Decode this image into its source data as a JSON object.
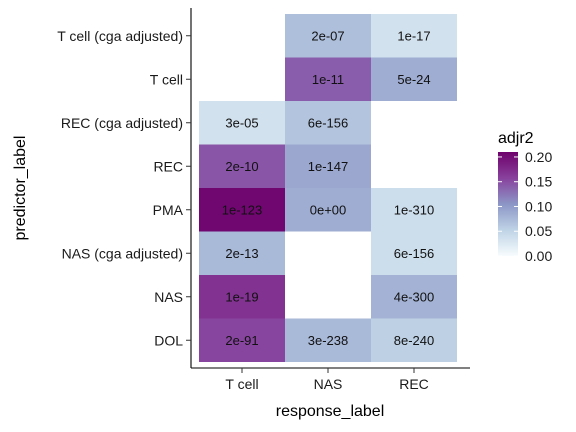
{
  "chart_data": {
    "type": "heatmap",
    "xlabel": "response_label",
    "ylabel": "predictor_label",
    "x_categories": [
      "T cell",
      "NAS",
      "REC"
    ],
    "y_categories": [
      "T cell (cga adjusted)",
      "T cell",
      "REC (cga adjusted)",
      "REC",
      "PMA",
      "NAS (cga adjusted)",
      "NAS",
      "DOL"
    ],
    "cells": [
      {
        "x": "NAS",
        "y": "T cell (cga adjusted)",
        "value": 0.07,
        "label": "2e-07"
      },
      {
        "x": "REC",
        "y": "T cell (cga adjusted)",
        "value": 0.035,
        "label": "1e-17"
      },
      {
        "x": "NAS",
        "y": "T cell",
        "value": 0.14,
        "label": "1e-11"
      },
      {
        "x": "REC",
        "y": "T cell",
        "value": 0.085,
        "label": "5e-24"
      },
      {
        "x": "T cell",
        "y": "REC (cga adjusted)",
        "value": 0.035,
        "label": "3e-05"
      },
      {
        "x": "NAS",
        "y": "REC (cga adjusted)",
        "value": 0.065,
        "label": "6e-156"
      },
      {
        "x": "T cell",
        "y": "REC",
        "value": 0.145,
        "label": "2e-10"
      },
      {
        "x": "NAS",
        "y": "REC",
        "value": 0.09,
        "label": "1e-147"
      },
      {
        "x": "T cell",
        "y": "PMA",
        "value": 0.205,
        "label": "1e-123"
      },
      {
        "x": "NAS",
        "y": "PMA",
        "value": 0.085,
        "label": "0e+00"
      },
      {
        "x": "REC",
        "y": "PMA",
        "value": 0.04,
        "label": "1e-310"
      },
      {
        "x": "T cell",
        "y": "NAS (cga adjusted)",
        "value": 0.075,
        "label": "2e-13"
      },
      {
        "x": "REC",
        "y": "NAS (cga adjusted)",
        "value": 0.04,
        "label": "6e-156"
      },
      {
        "x": "T cell",
        "y": "NAS",
        "value": 0.17,
        "label": "1e-19"
      },
      {
        "x": "REC",
        "y": "NAS",
        "value": 0.08,
        "label": "4e-300"
      },
      {
        "x": "T cell",
        "y": "DOL",
        "value": 0.155,
        "label": "2e-91"
      },
      {
        "x": "NAS",
        "y": "DOL",
        "value": 0.075,
        "label": "3e-238"
      },
      {
        "x": "REC",
        "y": "DOL",
        "value": 0.055,
        "label": "8e-240"
      }
    ],
    "legend": {
      "title": "adjr2",
      "ticks": [
        0.0,
        0.05,
        0.1,
        0.15,
        0.2
      ],
      "tick_labels": [
        "0.00",
        "0.05",
        "0.10",
        "0.15",
        "0.20"
      ],
      "range": [
        0.0,
        0.21
      ],
      "placement": "right"
    },
    "color_scale": [
      "#f7fcfd",
      "#bfd3e6",
      "#8c96c6",
      "#88419d",
      "#6e016b"
    ],
    "grid": false
  }
}
